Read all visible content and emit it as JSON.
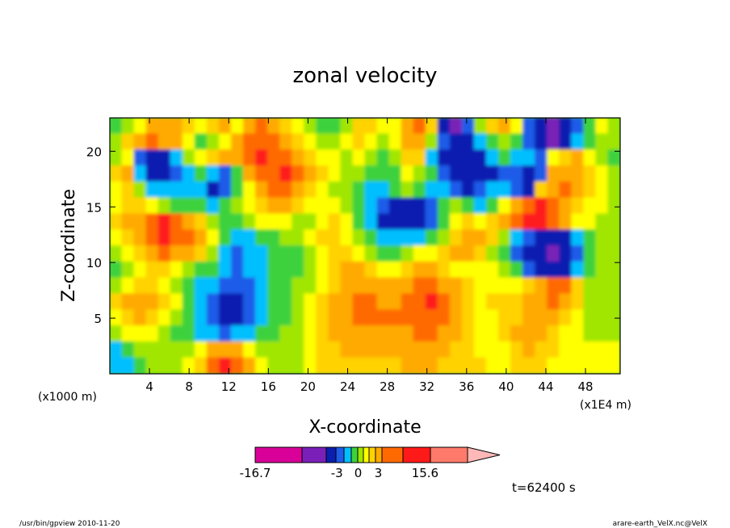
{
  "chart_data": {
    "type": "heatmap",
    "title": "zonal velocity",
    "xlabel": "X-coordinate",
    "ylabel": "Z-coordinate",
    "x_unit_left": "(x1000 m)",
    "x_unit_right": "(x1E4 m)",
    "xlim": [
      0,
      51.5
    ],
    "ylim": [
      0,
      23
    ],
    "x_ticks": [
      4,
      8,
      12,
      16,
      20,
      24,
      28,
      32,
      36,
      40,
      44,
      48
    ],
    "y_ticks": [
      5,
      10,
      15,
      20
    ],
    "colorbar": {
      "colors": [
        "#d90099",
        "#7a20b8",
        "#0a1fb0",
        "#1e5ce8",
        "#00bfff",
        "#3cd23c",
        "#a0e600",
        "#ffff00",
        "#ffd200",
        "#ffaa00",
        "#ff6a00",
        "#ff1a1a",
        "#ff7a6a",
        "#ffb8b8"
      ],
      "labels": [
        "-16.7",
        "-3",
        "0",
        "3",
        "15.6"
      ],
      "label_positions": [
        0,
        0.385,
        0.485,
        0.58,
        0.8
      ]
    },
    "field": [
      [
        0,
        1,
        2,
        5,
        5,
        4,
        3,
        2,
        3,
        4,
        2,
        5,
        6,
        4,
        3,
        2,
        1,
        0,
        -1,
        1,
        3,
        3,
        2,
        2,
        5,
        6,
        3,
        -6,
        -9,
        -5,
        1,
        3,
        4,
        2,
        -4,
        -8,
        -9,
        -7,
        -4,
        0,
        2,
        1
      ],
      [
        1,
        3,
        4,
        6,
        5,
        4,
        2,
        0,
        1,
        2,
        4,
        6,
        7,
        6,
        5,
        3,
        2,
        1,
        1,
        2,
        3,
        2,
        1,
        2,
        4,
        5,
        1,
        -5,
        -8,
        -7,
        -3,
        -1,
        1,
        0,
        -5,
        -8,
        -9,
        -6,
        -3,
        0,
        1,
        1
      ],
      [
        1,
        2,
        -4,
        -7,
        -6,
        -2,
        1,
        2,
        3,
        4,
        5,
        7,
        8,
        7,
        6,
        4,
        3,
        2,
        2,
        1,
        2,
        1,
        0,
        1,
        3,
        3,
        -2,
        -6,
        -8,
        -8,
        -6,
        -3,
        -1,
        -2,
        -3,
        -5,
        2,
        3,
        4,
        2,
        1,
        0
      ],
      [
        3,
        4,
        -2,
        -6,
        -7,
        -4,
        -2,
        -1,
        -3,
        -4,
        -1,
        4,
        6,
        7,
        8,
        6,
        4,
        3,
        2,
        1,
        1,
        -1,
        -1,
        0,
        2,
        1,
        -1,
        -4,
        -6,
        -7,
        -7,
        -6,
        -4,
        -5,
        -6,
        -5,
        4,
        5,
        4,
        3,
        2,
        1
      ],
      [
        2,
        3,
        1,
        -2,
        -3,
        -3,
        -2,
        -3,
        -6,
        -5,
        0,
        2,
        4,
        6,
        7,
        5,
        3,
        2,
        1,
        1,
        0,
        -2,
        -2,
        -1,
        1,
        0,
        -2,
        -3,
        -5,
        -6,
        -4,
        -2,
        -3,
        -5,
        -6,
        3,
        5,
        6,
        4,
        3,
        2,
        1
      ],
      [
        2,
        3,
        3,
        2,
        1,
        0,
        -1,
        -1,
        -2,
        -1,
        1,
        2,
        3,
        4,
        4,
        3,
        2,
        2,
        2,
        1,
        -1,
        -3,
        -5,
        -6,
        -7,
        -6,
        -4,
        -1,
        1,
        -1,
        -2,
        0,
        2,
        5,
        7,
        8,
        6,
        5,
        3,
        2,
        2,
        1
      ],
      [
        3,
        4,
        5,
        7,
        8,
        7,
        5,
        3,
        1,
        0,
        0,
        1,
        2,
        2,
        2,
        1,
        1,
        2,
        3,
        2,
        0,
        -3,
        -6,
        -7,
        -8,
        -7,
        -4,
        -1,
        2,
        3,
        2,
        3,
        4,
        6,
        8,
        8,
        6,
        4,
        2,
        2,
        1,
        1
      ],
      [
        2,
        3,
        4,
        6,
        8,
        7,
        6,
        5,
        2,
        -1,
        -3,
        -2,
        -1,
        0,
        1,
        1,
        2,
        3,
        3,
        2,
        1,
        -1,
        -2,
        -3,
        -2,
        -2,
        -1,
        1,
        3,
        4,
        4,
        3,
        1,
        -2,
        -5,
        -7,
        -8,
        -6,
        -3,
        0,
        1,
        1
      ],
      [
        1,
        2,
        3,
        5,
        6,
        5,
        4,
        3,
        1,
        -2,
        -4,
        -3,
        -2,
        -1,
        0,
        0,
        1,
        2,
        3,
        3,
        2,
        1,
        0,
        0,
        1,
        2,
        2,
        3,
        4,
        4,
        3,
        1,
        -1,
        -4,
        -6,
        -8,
        -9,
        -8,
        -5,
        -1,
        1,
        1
      ],
      [
        0,
        1,
        2,
        3,
        3,
        2,
        1,
        0,
        -1,
        -3,
        -4,
        -3,
        -2,
        -1,
        0,
        0,
        1,
        2,
        3,
        4,
        4,
        3,
        2,
        2,
        3,
        4,
        4,
        3,
        2,
        2,
        2,
        2,
        1,
        -1,
        -4,
        -6,
        -7,
        -6,
        -3,
        0,
        1,
        1
      ],
      [
        1,
        2,
        3,
        3,
        2,
        1,
        0,
        -2,
        -3,
        -5,
        -5,
        -4,
        -2,
        -1,
        0,
        1,
        1,
        2,
        3,
        4,
        5,
        5,
        4,
        4,
        5,
        6,
        6,
        5,
        4,
        3,
        2,
        2,
        2,
        2,
        3,
        5,
        7,
        6,
        3,
        1,
        1,
        1
      ],
      [
        3,
        4,
        5,
        4,
        3,
        2,
        0,
        -2,
        -4,
        -6,
        -7,
        -5,
        -3,
        -1,
        0,
        1,
        2,
        3,
        4,
        5,
        6,
        6,
        5,
        5,
        6,
        7,
        8,
        6,
        4,
        3,
        2,
        3,
        3,
        3,
        4,
        5,
        6,
        5,
        3,
        1,
        1,
        1
      ],
      [
        2,
        3,
        4,
        3,
        2,
        1,
        -1,
        -3,
        -5,
        -6,
        -6,
        -5,
        -3,
        -1,
        0,
        1,
        2,
        3,
        4,
        5,
        6,
        6,
        6,
        6,
        6,
        7,
        7,
        6,
        4,
        3,
        2,
        2,
        3,
        3,
        4,
        5,
        4,
        3,
        2,
        1,
        1,
        1
      ],
      [
        1,
        2,
        2,
        2,
        1,
        0,
        -1,
        -2,
        -3,
        -4,
        -3,
        -2,
        -1,
        0,
        1,
        1,
        2,
        3,
        4,
        5,
        5,
        5,
        5,
        5,
        5,
        6,
        6,
        5,
        4,
        3,
        2,
        2,
        3,
        4,
        5,
        4,
        3,
        2,
        2,
        1,
        1,
        1
      ],
      [
        -2,
        0,
        1,
        1,
        1,
        1,
        1,
        2,
        4,
        5,
        4,
        2,
        1,
        1,
        1,
        1,
        2,
        3,
        3,
        4,
        4,
        4,
        4,
        4,
        4,
        5,
        5,
        4,
        3,
        3,
        2,
        2,
        2,
        3,
        4,
        3,
        3,
        2,
        2,
        2,
        2,
        2
      ],
      [
        -3,
        -2,
        0,
        1,
        1,
        1,
        2,
        3,
        6,
        8,
        7,
        4,
        2,
        1,
        1,
        1,
        2,
        3,
        3,
        3,
        3,
        3,
        3,
        3,
        4,
        4,
        4,
        3,
        3,
        3,
        3,
        2,
        2,
        3,
        3,
        3,
        2,
        2,
        2,
        2,
        2,
        2
      ]
    ]
  },
  "footer": {
    "time_label": "t=62400 s",
    "program": "/usr/bin/gpview  2010-11-20",
    "source": "arare-earth_VelX.nc@VelX"
  }
}
